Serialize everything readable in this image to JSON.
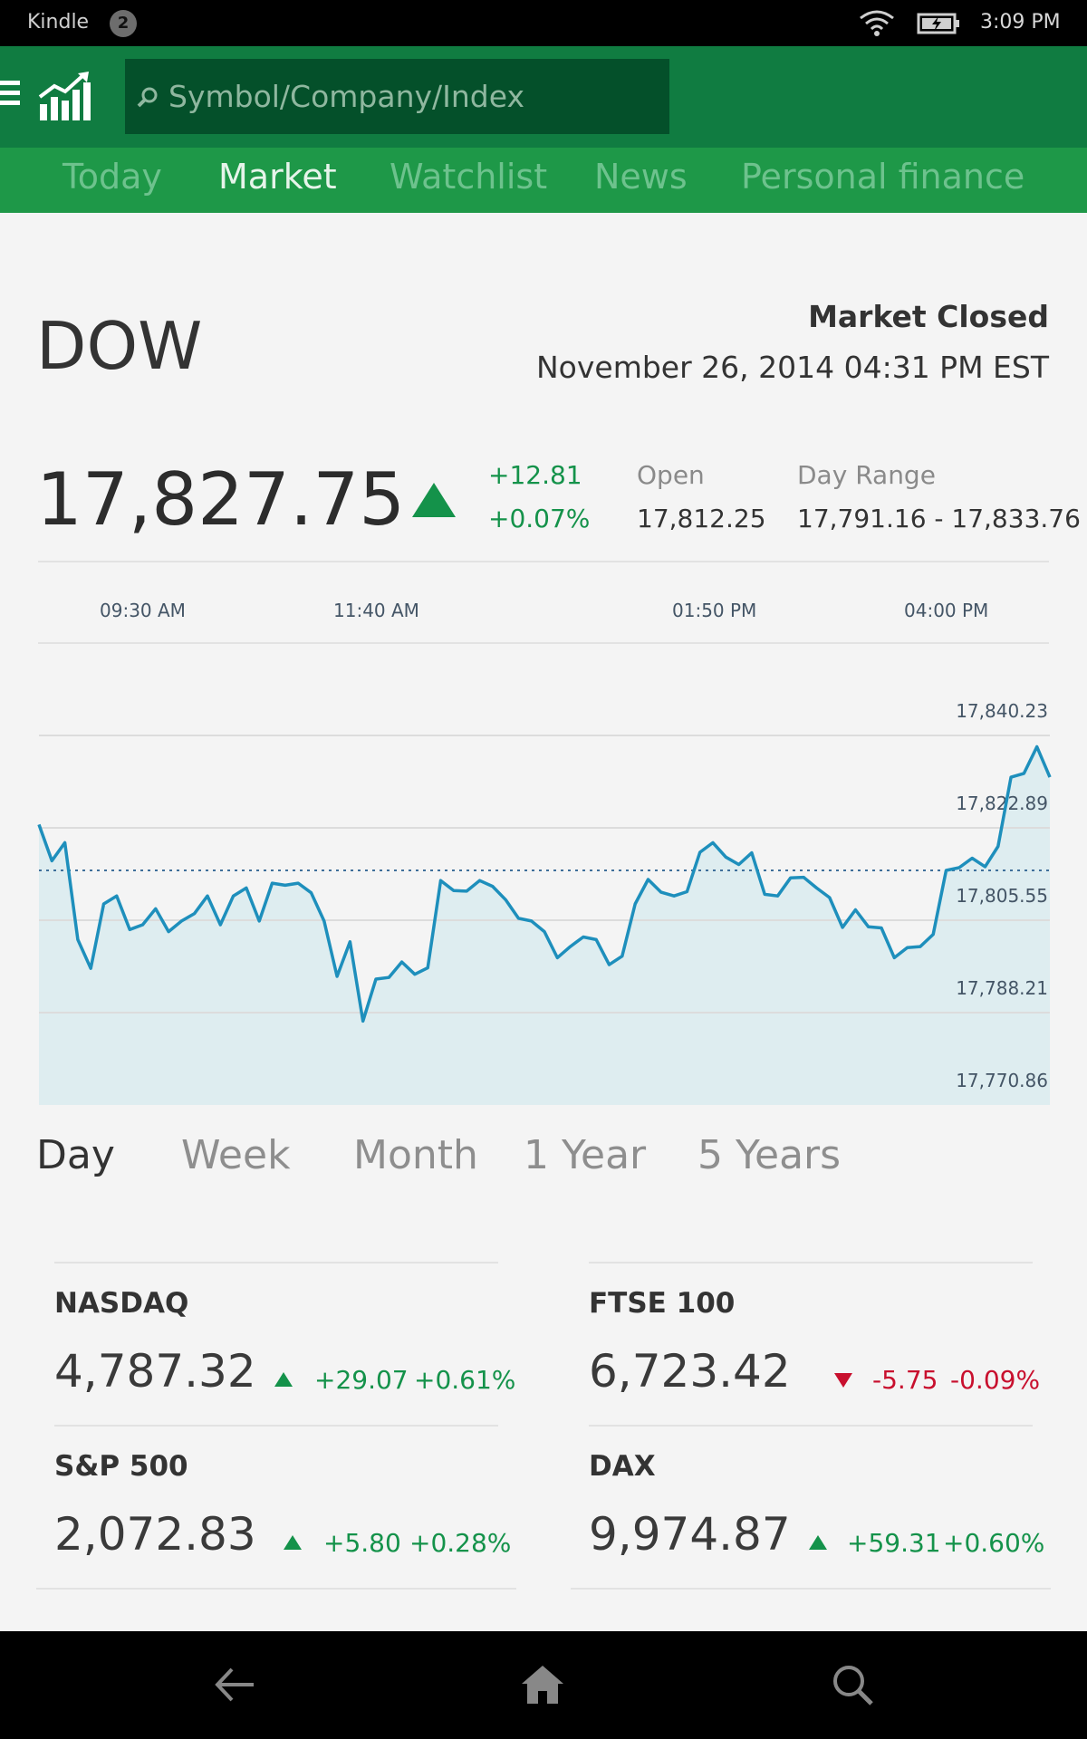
{
  "status_bar": {
    "app_name": "Kindle",
    "notification_count": "2",
    "time": "3:09 PM"
  },
  "search": {
    "placeholder": "Symbol/Company/Index"
  },
  "tabs": [
    "Today",
    "Market",
    "Watchlist",
    "News",
    "Personal finance"
  ],
  "active_tab": "Market",
  "index": {
    "name": "DOW",
    "status": "Market Closed",
    "datetime": "November 26, 2014 04:31 PM EST",
    "price": "17,827.75",
    "change_points": "+12.81",
    "change_percent": "+0.07%",
    "open_label": "Open",
    "open_value": "17,812.25",
    "range_label": "Day Range",
    "range_value": "17,791.16 - 17,833.76"
  },
  "chart_data": {
    "type": "area",
    "x_ticks": [
      "09:30 AM",
      "11:40 AM",
      "01:50 PM",
      "04:00 PM"
    ],
    "y_ticks": [
      "17,840.23",
      "17,822.89",
      "17,805.55",
      "17,788.21",
      "17,770.86"
    ],
    "ylim": [
      17770.86,
      17840.23
    ],
    "reference_value": 17814.9,
    "series": [
      {
        "values": [
          17823.5,
          17816.7,
          17820.1,
          17801.9,
          17796.5,
          17808.6,
          17810.1,
          17803.8,
          17804.7,
          17807.7,
          17803.4,
          17805.4,
          17806.8,
          17810.1,
          17804.7,
          17810.1,
          17811.6,
          17805.4,
          17812.5,
          17812.1,
          17812.5,
          17810.7,
          17805.4,
          17795.0,
          17801.5,
          17786.6,
          17794.5,
          17794.8,
          17797.7,
          17795.4,
          17796.6,
          17813.0,
          17811.1,
          17811.0,
          17813.0,
          17811.9,
          17809.4,
          17805.9,
          17805.4,
          17803.4,
          17798.5,
          17800.6,
          17802.4,
          17801.9,
          17797.2,
          17798.8,
          17808.6,
          17813.2,
          17810.8,
          17810.1,
          17810.9,
          17818.3,
          17820.1,
          17817.4,
          17816.0,
          17818.2,
          17810.4,
          17810.1,
          17813.5,
          17813.6,
          17811.6,
          17809.8,
          17804.2,
          17807.5,
          17804.3,
          17804.1,
          17798.5,
          17800.4,
          17800.6,
          17802.9,
          17814.9,
          17815.4,
          17817.2,
          17815.6,
          17819.4,
          17832.4,
          17833.1,
          17838.1,
          17832.4
        ]
      }
    ]
  },
  "ranges": [
    "Day",
    "Week",
    "Month",
    "1 Year",
    "5 Years"
  ],
  "active_range": "Day",
  "indices": [
    {
      "name": "NASDAQ",
      "value": "4,787.32",
      "change": "+29.07",
      "percent": "+0.61%",
      "direction": "up"
    },
    {
      "name": "FTSE 100",
      "value": "6,723.42",
      "change": "-5.75",
      "percent": "-0.09%",
      "direction": "down"
    },
    {
      "name": "S&P 500",
      "value": "2,072.83",
      "change": "+5.80",
      "percent": "+0.28%",
      "direction": "up"
    },
    {
      "name": "DAX",
      "value": "9,974.87",
      "change": "+59.31",
      "percent": "+0.60%",
      "direction": "up"
    }
  ],
  "colors": {
    "brand_dark": "#107c41",
    "brand_tab": "#1e9848",
    "up": "#14924a",
    "down": "#c8102e",
    "line": "#1e8fbc",
    "area": "#d9ebee"
  },
  "icons": [
    "menu-icon",
    "logo-chart-icon",
    "search-icon",
    "wifi-icon",
    "battery-icon",
    "back-icon",
    "home-icon",
    "search-nav-icon"
  ]
}
